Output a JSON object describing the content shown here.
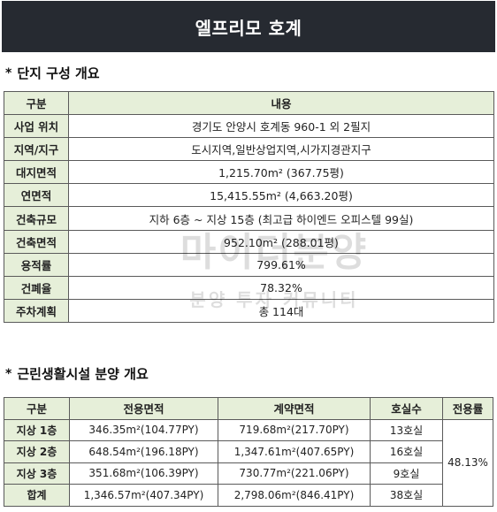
{
  "page_title": "엘프리모 호계",
  "section1": {
    "bullet": "*",
    "heading": "단지 구성 개요",
    "header": {
      "col1": "구분",
      "col2": "내용"
    },
    "rows": [
      {
        "label": "사업 위치",
        "value": "경기도 안양시 호계동 960-1 외 2필지"
      },
      {
        "label": "지역/지구",
        "value": "도시지역,일반상업지역,시가지경관지구"
      },
      {
        "label": "대지면적",
        "value": "1,215.70m² (367.75평)"
      },
      {
        "label": "연면적",
        "value": "15,415.55m² (4,663.20평)"
      },
      {
        "label": "건축규모",
        "value": "지하 6층 ~ 지상 15층 (최고급 하이엔드 오피스텔 99실)"
      },
      {
        "label": "건축면적",
        "value": "952.10m² (288.01평)"
      },
      {
        "label": "용적률",
        "value": "799.61%"
      },
      {
        "label": "건폐율",
        "value": "78.32%"
      },
      {
        "label": "주차계획",
        "value": "총 114대"
      }
    ]
  },
  "section2": {
    "bullet": "*",
    "heading": "근린생활시설 분양 개요",
    "header": {
      "floor": "구분",
      "exclusive": "전용면적",
      "contract": "계약면적",
      "units": "호실수",
      "ratio": "전용률"
    },
    "rows": [
      {
        "floor": "지상 1층",
        "exclusive": "346.35m²(104.77PY)",
        "contract": "719.68m²(217.70PY)",
        "units": "13호실"
      },
      {
        "floor": "지상 2층",
        "exclusive": "648.54m²(196.18PY)",
        "contract": "1,347.61m²(407.65PY)",
        "units": "16호실"
      },
      {
        "floor": "지상 3층",
        "exclusive": "351.68m²(106.39PY)",
        "contract": "730.77m²(221.06PY)",
        "units": "9호실"
      },
      {
        "floor": "합계",
        "exclusive": "1,346.57m²(407.34PY)",
        "contract": "2,798.06m²(846.41PY)",
        "units": "38호실"
      }
    ],
    "ratio": "48.13%"
  },
  "watermark": {
    "main": "마이더분양",
    "sub": "분양 투자 커뮤니티"
  }
}
